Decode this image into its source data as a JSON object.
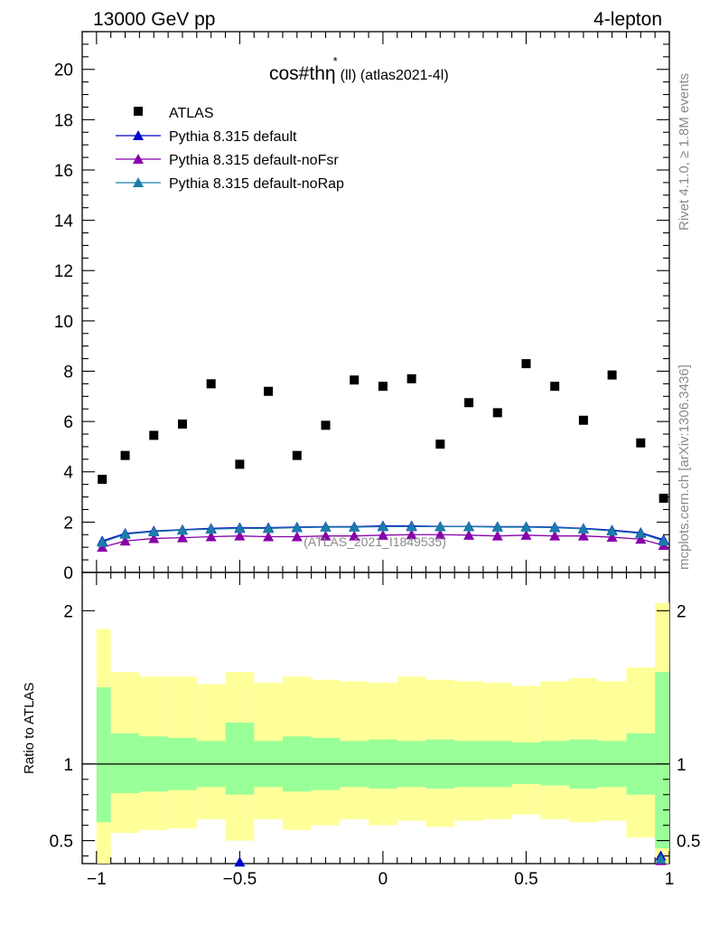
{
  "header": {
    "left": "13000 GeV pp",
    "right": "4-lepton"
  },
  "plot_title": {
    "main": "cos#thη",
    "sup": "*",
    "sub": "(ll) (atlas2021-4l)"
  },
  "side_labels": {
    "rivet": "Rivet 4.1.0, ≥ 1.8M events",
    "mcplots": "mcplots.cern.ch [arXiv:1306.3436]"
  },
  "watermark": "(ATLAS_2021_I1849535)",
  "ratio_ylabel": "Ratio to ATLAS",
  "chart_data": [
    {
      "type": "scatter",
      "title": "cos#thη* (ll) (atlas2021-4l)",
      "xlim": [
        -1.05,
        1.0
      ],
      "ylim": [
        0,
        21.5
      ],
      "yticks": [
        0,
        2,
        4,
        6,
        8,
        10,
        12,
        14,
        16,
        18,
        20
      ],
      "ytick_labels": [
        "0",
        "2",
        "4",
        "6",
        "8",
        "10",
        "12",
        "14",
        "16",
        "18",
        "20"
      ],
      "legend_position": "top-left",
      "legend": [
        {
          "name": "ATLAS",
          "marker": "square",
          "color": "#000000"
        },
        {
          "name": "Pythia 8.315 default",
          "marker": "triangle",
          "color": "#0000cc"
        },
        {
          "name": "Pythia 8.315 default-noFsr",
          "marker": "triangle",
          "color": "#8800aa"
        },
        {
          "name": "Pythia 8.315 default-noRap",
          "marker": "triangle",
          "color": "#1a7fa8"
        }
      ],
      "x": [
        -0.98,
        -0.9,
        -0.8,
        -0.7,
        -0.6,
        -0.5,
        -0.4,
        -0.3,
        -0.2,
        -0.1,
        0.0,
        0.1,
        0.2,
        0.3,
        0.4,
        0.5,
        0.6,
        0.7,
        0.8,
        0.9,
        0.98
      ],
      "series": [
        {
          "name": "ATLAS",
          "color": "#000000",
          "values": [
            3.7,
            4.65,
            5.45,
            5.9,
            7.5,
            4.3,
            7.2,
            4.65,
            5.85,
            7.65,
            7.4,
            7.7,
            5.1,
            6.75,
            6.35,
            8.3,
            7.4,
            6.05,
            7.85,
            5.15,
            2.95
          ]
        },
        {
          "name": "Pythia 8.315 default",
          "color": "#0000cc",
          "values": [
            1.25,
            1.55,
            1.65,
            1.7,
            1.75,
            1.78,
            1.78,
            1.8,
            1.82,
            1.82,
            1.85,
            1.85,
            1.83,
            1.83,
            1.82,
            1.82,
            1.8,
            1.75,
            1.68,
            1.58,
            1.3
          ]
        },
        {
          "name": "Pythia 8.315 default-noFsr",
          "color": "#8800aa",
          "values": [
            1.0,
            1.25,
            1.35,
            1.38,
            1.42,
            1.45,
            1.42,
            1.42,
            1.45,
            1.45,
            1.48,
            1.5,
            1.5,
            1.48,
            1.45,
            1.48,
            1.45,
            1.45,
            1.4,
            1.32,
            1.08
          ]
        },
        {
          "name": "Pythia 8.315 default-noRap",
          "color": "#1a7fa8",
          "values": [
            1.2,
            1.52,
            1.62,
            1.68,
            1.72,
            1.75,
            1.75,
            1.78,
            1.8,
            1.8,
            1.82,
            1.82,
            1.82,
            1.82,
            1.8,
            1.8,
            1.78,
            1.73,
            1.65,
            1.55,
            1.25
          ]
        }
      ]
    },
    {
      "type": "area",
      "ylabel": "Ratio to ATLAS",
      "xlim": [
        -1.05,
        1.0
      ],
      "ylim": [
        0.35,
        2.25
      ],
      "yticks": [
        0.5,
        1,
        2
      ],
      "ytick_labels": [
        "0.5",
        "1",
        "2"
      ],
      "xticks": [
        -1,
        -0.5,
        0,
        0.5,
        1
      ],
      "xtick_labels": [
        "−1",
        "−0.5",
        "0",
        "0.5",
        "1"
      ],
      "reference_line": 1,
      "bin_edges": [
        -1.0,
        -0.95,
        -0.85,
        -0.75,
        -0.65,
        -0.55,
        -0.45,
        -0.35,
        -0.25,
        -0.15,
        -0.05,
        0.05,
        0.15,
        0.25,
        0.35,
        0.45,
        0.55,
        0.65,
        0.75,
        0.85,
        0.95,
        1.0
      ],
      "band_outer": {
        "color": "#ffff99",
        "low": [
          0.3,
          0.55,
          0.57,
          0.58,
          0.64,
          0.5,
          0.64,
          0.57,
          0.6,
          0.64,
          0.6,
          0.63,
          0.59,
          0.63,
          0.64,
          0.67,
          0.64,
          0.62,
          0.63,
          0.52,
          0.3
        ],
        "high": [
          1.88,
          1.6,
          1.57,
          1.57,
          1.52,
          1.6,
          1.53,
          1.57,
          1.55,
          1.54,
          1.53,
          1.57,
          1.55,
          1.54,
          1.53,
          1.51,
          1.54,
          1.56,
          1.54,
          1.63,
          2.05
        ]
      },
      "band_inner": {
        "color": "#99ff99",
        "low": [
          0.62,
          0.81,
          0.82,
          0.83,
          0.85,
          0.8,
          0.85,
          0.82,
          0.83,
          0.85,
          0.84,
          0.85,
          0.84,
          0.85,
          0.85,
          0.87,
          0.86,
          0.84,
          0.85,
          0.8,
          0.45
        ],
        "high": [
          1.5,
          1.2,
          1.18,
          1.17,
          1.15,
          1.27,
          1.15,
          1.18,
          1.17,
          1.15,
          1.16,
          1.15,
          1.16,
          1.15,
          1.15,
          1.14,
          1.15,
          1.16,
          1.15,
          1.2,
          1.6
        ]
      },
      "series": [
        {
          "name": "Pythia 8.315 default",
          "color": "#0000cc",
          "x": [
            -0.5,
            0.97
          ],
          "values": [
            0.36,
            0.4
          ]
        },
        {
          "name": "Pythia 8.315 default-noFsr",
          "color": "#8800aa",
          "x": [
            0.97
          ],
          "values": [
            0.37
          ]
        },
        {
          "name": "Pythia 8.315 default-noRap",
          "color": "#1a7fa8",
          "x": [
            0.97
          ],
          "values": [
            0.38
          ]
        }
      ]
    }
  ]
}
